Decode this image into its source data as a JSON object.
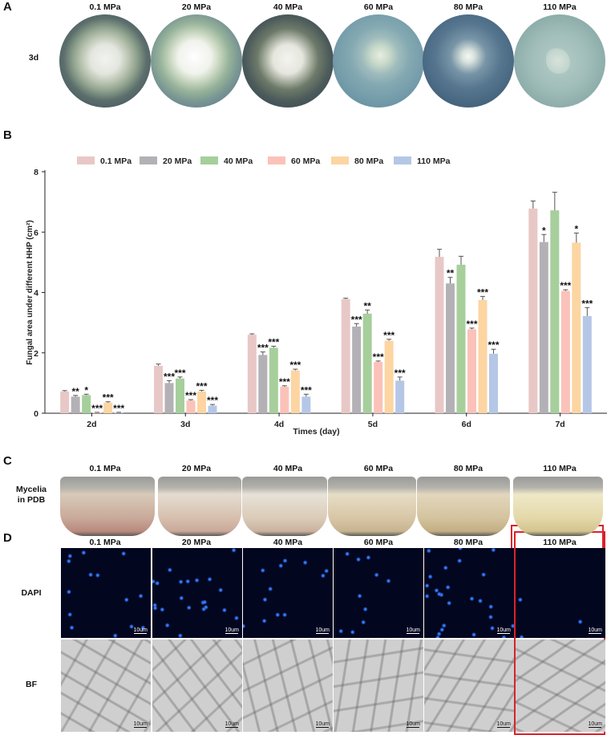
{
  "panel_a": {
    "letter": "A",
    "row_label": "3d",
    "columns": [
      "0.1 MPa",
      "20 MPa",
      "40 MPa",
      "60 MPa",
      "80 MPa",
      "110 MPa"
    ]
  },
  "panel_b": {
    "letter": "B"
  },
  "panel_c": {
    "letter": "C",
    "row_label_line1": "Mycelia",
    "row_label_line2": "in PDB",
    "columns": [
      "0.1 MPa",
      "20 MPa",
      "40 MPa",
      "60 MPa",
      "80 MPa",
      "110 MPa"
    ],
    "highlight_color": "#d9232a"
  },
  "panel_d": {
    "letter": "D",
    "columns": [
      "0.1 MPa",
      "20 MPa",
      "40 MPa",
      "60 MPa",
      "80 MPa",
      "110 MPa"
    ],
    "rows": [
      "DAPI",
      "BF"
    ],
    "scale_label": "10um",
    "highlight_color": "#d9232a"
  },
  "chart_data": {
    "type": "bar",
    "xlabel": "Times (day)",
    "ylabel": "Fungal area under different HHP (cm²)",
    "ylim": [
      0,
      8
    ],
    "yticks": [
      "0",
      "2",
      "4",
      "6",
      "8"
    ],
    "categories": [
      "2d",
      "3d",
      "4d",
      "5d",
      "6d",
      "7d"
    ],
    "legend_position": "top",
    "series": [
      {
        "name": "0.1 MPa",
        "color": "#e8c8c6",
        "values": [
          0.72,
          1.57,
          2.6,
          3.78,
          5.18,
          6.78
        ],
        "errors": [
          0.03,
          0.06,
          0.03,
          0.03,
          0.25,
          0.25
        ],
        "sig": [
          "",
          "",
          "",
          "",
          "",
          ""
        ]
      },
      {
        "name": "20 MPa",
        "color": "#b3b1b6",
        "values": [
          0.55,
          1.0,
          1.93,
          2.87,
          4.3,
          5.67
        ],
        "errors": [
          0.04,
          0.08,
          0.1,
          0.1,
          0.2,
          0.25
        ],
        "sig": [
          "**",
          "***",
          "***",
          "***",
          "**",
          "*"
        ]
      },
      {
        "name": "40 MPa",
        "color": "#a6cf9c",
        "values": [
          0.6,
          1.15,
          2.17,
          3.3,
          4.92,
          6.72
        ],
        "errors": [
          0.03,
          0.05,
          0.05,
          0.12,
          0.28,
          0.6
        ],
        "sig": [
          "*",
          "***",
          "***",
          "**",
          "",
          ""
        ]
      },
      {
        "name": "60 MPa",
        "color": "#fbc2b9",
        "values": [
          0.02,
          0.42,
          0.88,
          1.7,
          2.78,
          4.05
        ],
        "errors": [
          0.01,
          0.03,
          0.03,
          0.03,
          0.04,
          0.04
        ],
        "sig": [
          "***",
          "***",
          "***",
          "***",
          "***",
          "***"
        ]
      },
      {
        "name": "80 MPa",
        "color": "#fcd5a2",
        "values": [
          0.35,
          0.72,
          1.42,
          2.4,
          3.75,
          5.65
        ],
        "errors": [
          0.03,
          0.04,
          0.04,
          0.05,
          0.12,
          0.32
        ],
        "sig": [
          "***",
          "***",
          "***",
          "***",
          "***",
          "*"
        ]
      },
      {
        "name": "110 MPa",
        "color": "#b5c7e6",
        "values": [
          0.02,
          0.25,
          0.55,
          1.08,
          1.97,
          3.22
        ],
        "errors": [
          0.01,
          0.04,
          0.08,
          0.12,
          0.15,
          0.28
        ],
        "sig": [
          "***",
          "***",
          "***",
          "***",
          "***",
          "***"
        ]
      }
    ]
  }
}
